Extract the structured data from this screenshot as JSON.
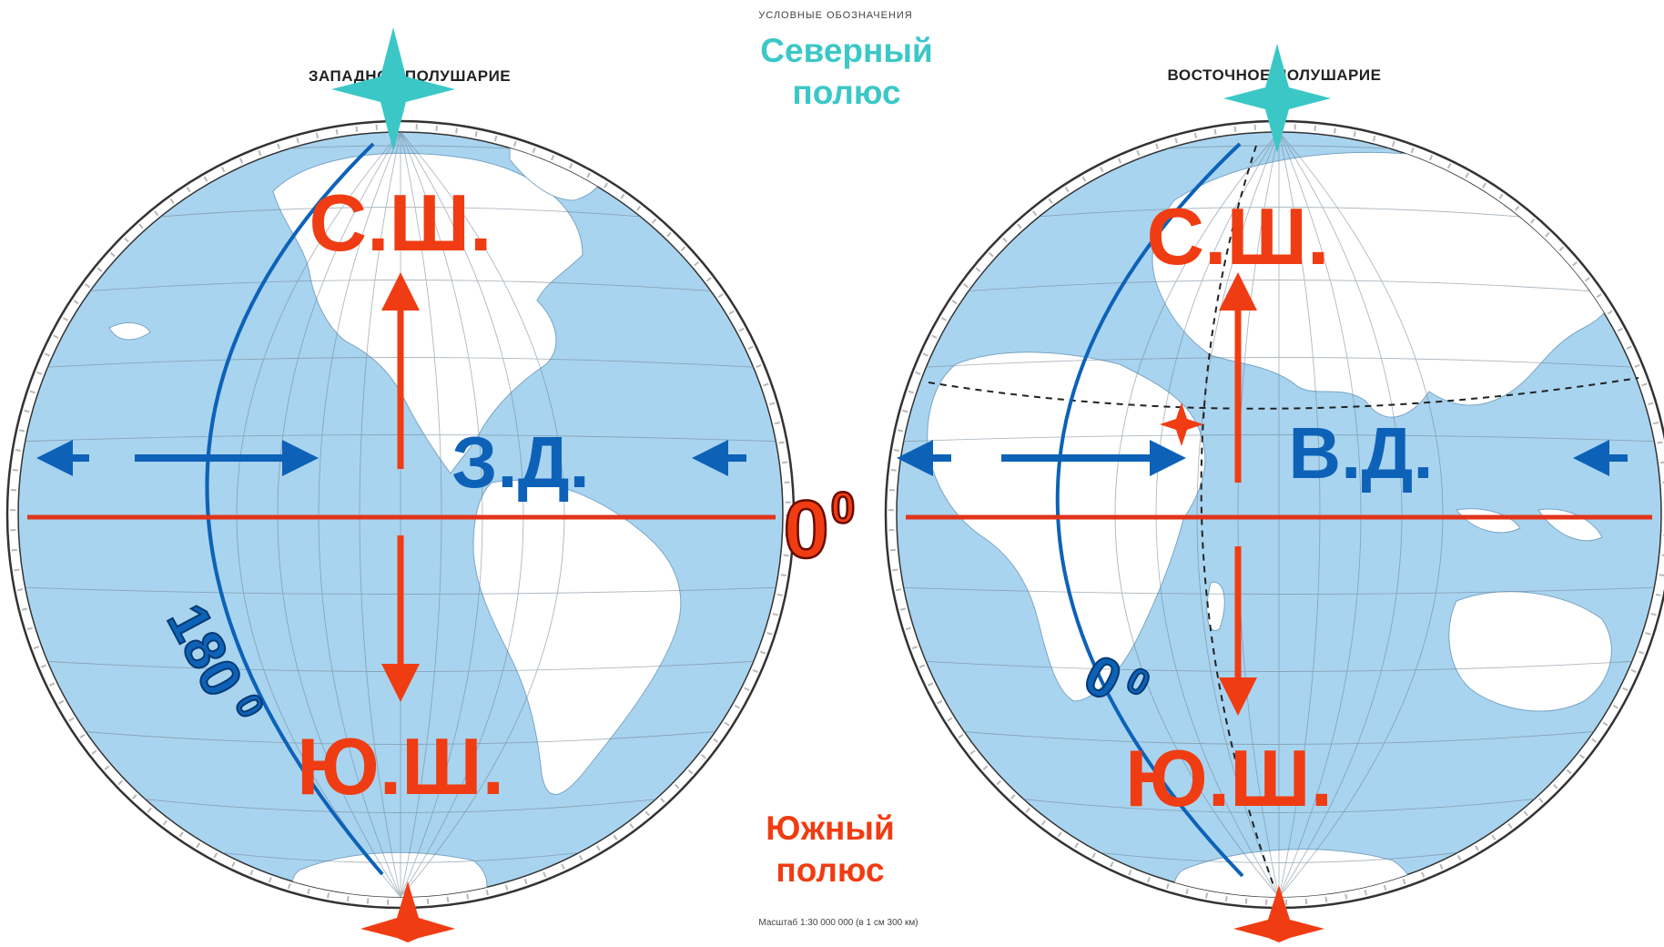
{
  "legend_title": "УСЛОВНЫЕ  ОБОЗНАЧЕНИЯ",
  "north_pole": {
    "line1": "Северный",
    "line2": "полюс"
  },
  "south_pole": {
    "line1": "Южный",
    "line2": "полюс"
  },
  "scale": "Масштаб 1:30 000 000 (в 1 см 300 км)",
  "equator_label": {
    "value": "0",
    "sup": "0"
  },
  "western": {
    "header": "ЗАПАДНОЕ ПОЛУШАРИЕ",
    "north": "С.Ш.",
    "south": "Ю.Ш.",
    "longitude": "З.Д.",
    "meridian": {
      "value": "180",
      "sup": "0"
    }
  },
  "eastern": {
    "header": "ВОСТОЧНОЕ ПОЛУШАРИЕ",
    "north": "С.Ш.",
    "south": "Ю.Ш.",
    "longitude": "В.Д.",
    "meridian": {
      "value": "0",
      "sup": "0"
    }
  },
  "colors": {
    "ocean": "#a9d4ef",
    "land": "#ffffff",
    "grid": "#6c7f8e",
    "equator": "#e0341b",
    "red_arrow": "#f03c12",
    "blue_arrow": "#0d62b8",
    "north_star": "#3cc7c7",
    "south_star": "#f03c12"
  }
}
